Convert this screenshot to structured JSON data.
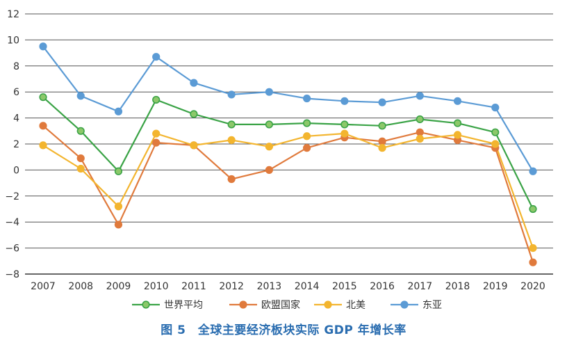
{
  "caption": "图 5　全球主要经济板块实际 GDP 年增长率",
  "chart_data": {
    "type": "line",
    "x": [
      "2007",
      "2008",
      "2009",
      "2010",
      "2011",
      "2012",
      "2013",
      "2014",
      "2015",
      "2016",
      "2017",
      "2018",
      "2019",
      "2020"
    ],
    "y_ticks": [
      "12",
      "10",
      "8",
      "6",
      "4",
      "2",
      "0",
      "−2",
      "−4",
      "−6",
      "−8"
    ],
    "ylim": [
      -8,
      12
    ],
    "grid": true,
    "legend_position": "bottom",
    "series": [
      {
        "name": "世界平均",
        "color": "#3aa346",
        "marker_fill": "#8cc86a",
        "values": [
          5.6,
          3.0,
          -0.1,
          5.4,
          4.3,
          3.5,
          3.5,
          3.6,
          3.5,
          3.4,
          3.9,
          3.6,
          2.9,
          -3.0
        ]
      },
      {
        "name": "欧盟国家",
        "color": "#e07a3c",
        "marker_fill": "#e07a3c",
        "values": [
          3.4,
          0.9,
          -4.2,
          2.1,
          1.9,
          -0.7,
          0.0,
          1.7,
          2.5,
          2.2,
          2.9,
          2.3,
          1.7,
          -7.1
        ]
      },
      {
        "name": "北美",
        "color": "#f3b52f",
        "marker_fill": "#f3b52f",
        "values": [
          1.9,
          0.1,
          -2.8,
          2.8,
          1.9,
          2.3,
          1.8,
          2.6,
          2.8,
          1.7,
          2.4,
          2.7,
          2.0,
          -6.0
        ]
      },
      {
        "name": "东亚",
        "color": "#5b9bd5",
        "marker_fill": "#5b9bd5",
        "values": [
          9.5,
          5.7,
          4.5,
          8.7,
          6.7,
          5.8,
          6.0,
          5.5,
          5.3,
          5.2,
          5.7,
          5.3,
          4.8,
          -0.1
        ]
      }
    ]
  }
}
